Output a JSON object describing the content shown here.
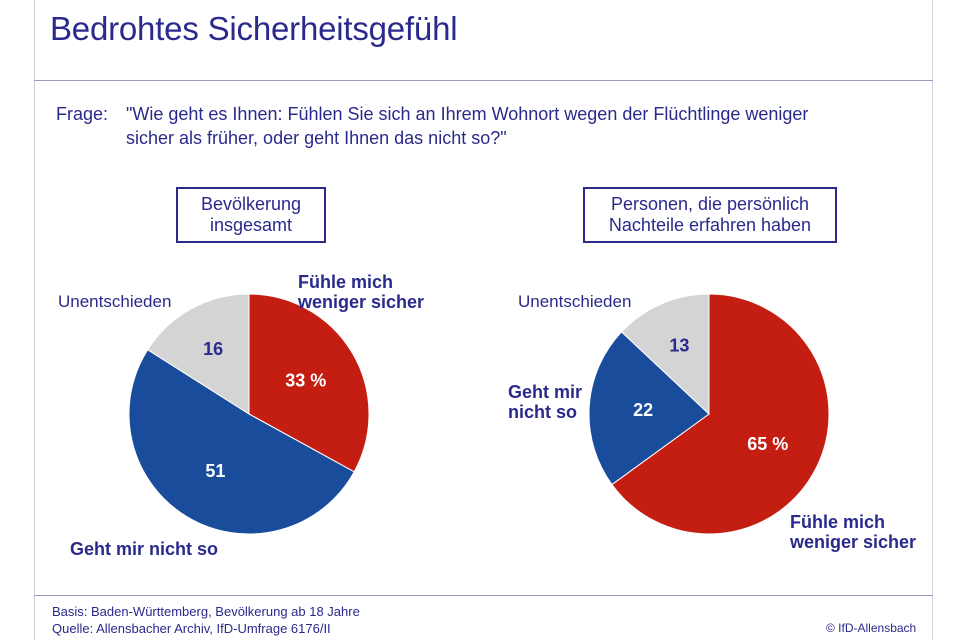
{
  "title": "Bedrohtes Sicherheitsgefühl",
  "question": {
    "label": "Frage:",
    "line1": "\"Wie geht es Ihnen: Fühlen Sie sich an Ihrem Wohnort wegen der Flüchtlinge weniger",
    "line2": "sicher als früher, oder geht Ihnen das nicht so?\""
  },
  "colors": {
    "weniger_sicher": "#c41e13",
    "nicht_so": "#1a4c9c",
    "unentschieden": "#d4d4d4",
    "text": "#2a2a8c"
  },
  "chart_data": [
    {
      "type": "pie",
      "title": "Bevölkerung\ninsgesamt",
      "slices": [
        {
          "label": "Fühle mich\nweniger sicher",
          "value": 33,
          "value_label": "33 %"
        },
        {
          "label": "Geht mir nicht so",
          "value": 51,
          "value_label": "51"
        },
        {
          "label": "Unentschieden",
          "value": 16,
          "value_label": "16"
        }
      ]
    },
    {
      "type": "pie",
      "title": "Personen, die persönlich\nNachteile erfahren haben",
      "slices": [
        {
          "label": "Fühle mich\nweniger sicher",
          "value": 65,
          "value_label": "65 %"
        },
        {
          "label": "Geht mir\nnicht so",
          "value": 22,
          "value_label": "22"
        },
        {
          "label": "Unentschieden",
          "value": 13,
          "value_label": "13"
        }
      ]
    }
  ],
  "footer": {
    "basis": "Basis: Baden-Württemberg, Bevölkerung ab 18 Jahre",
    "quelle": "Quelle: Allensbacher Archiv, IfD-Umfrage 6176/II",
    "copyright": "© IfD-Allensbach"
  }
}
